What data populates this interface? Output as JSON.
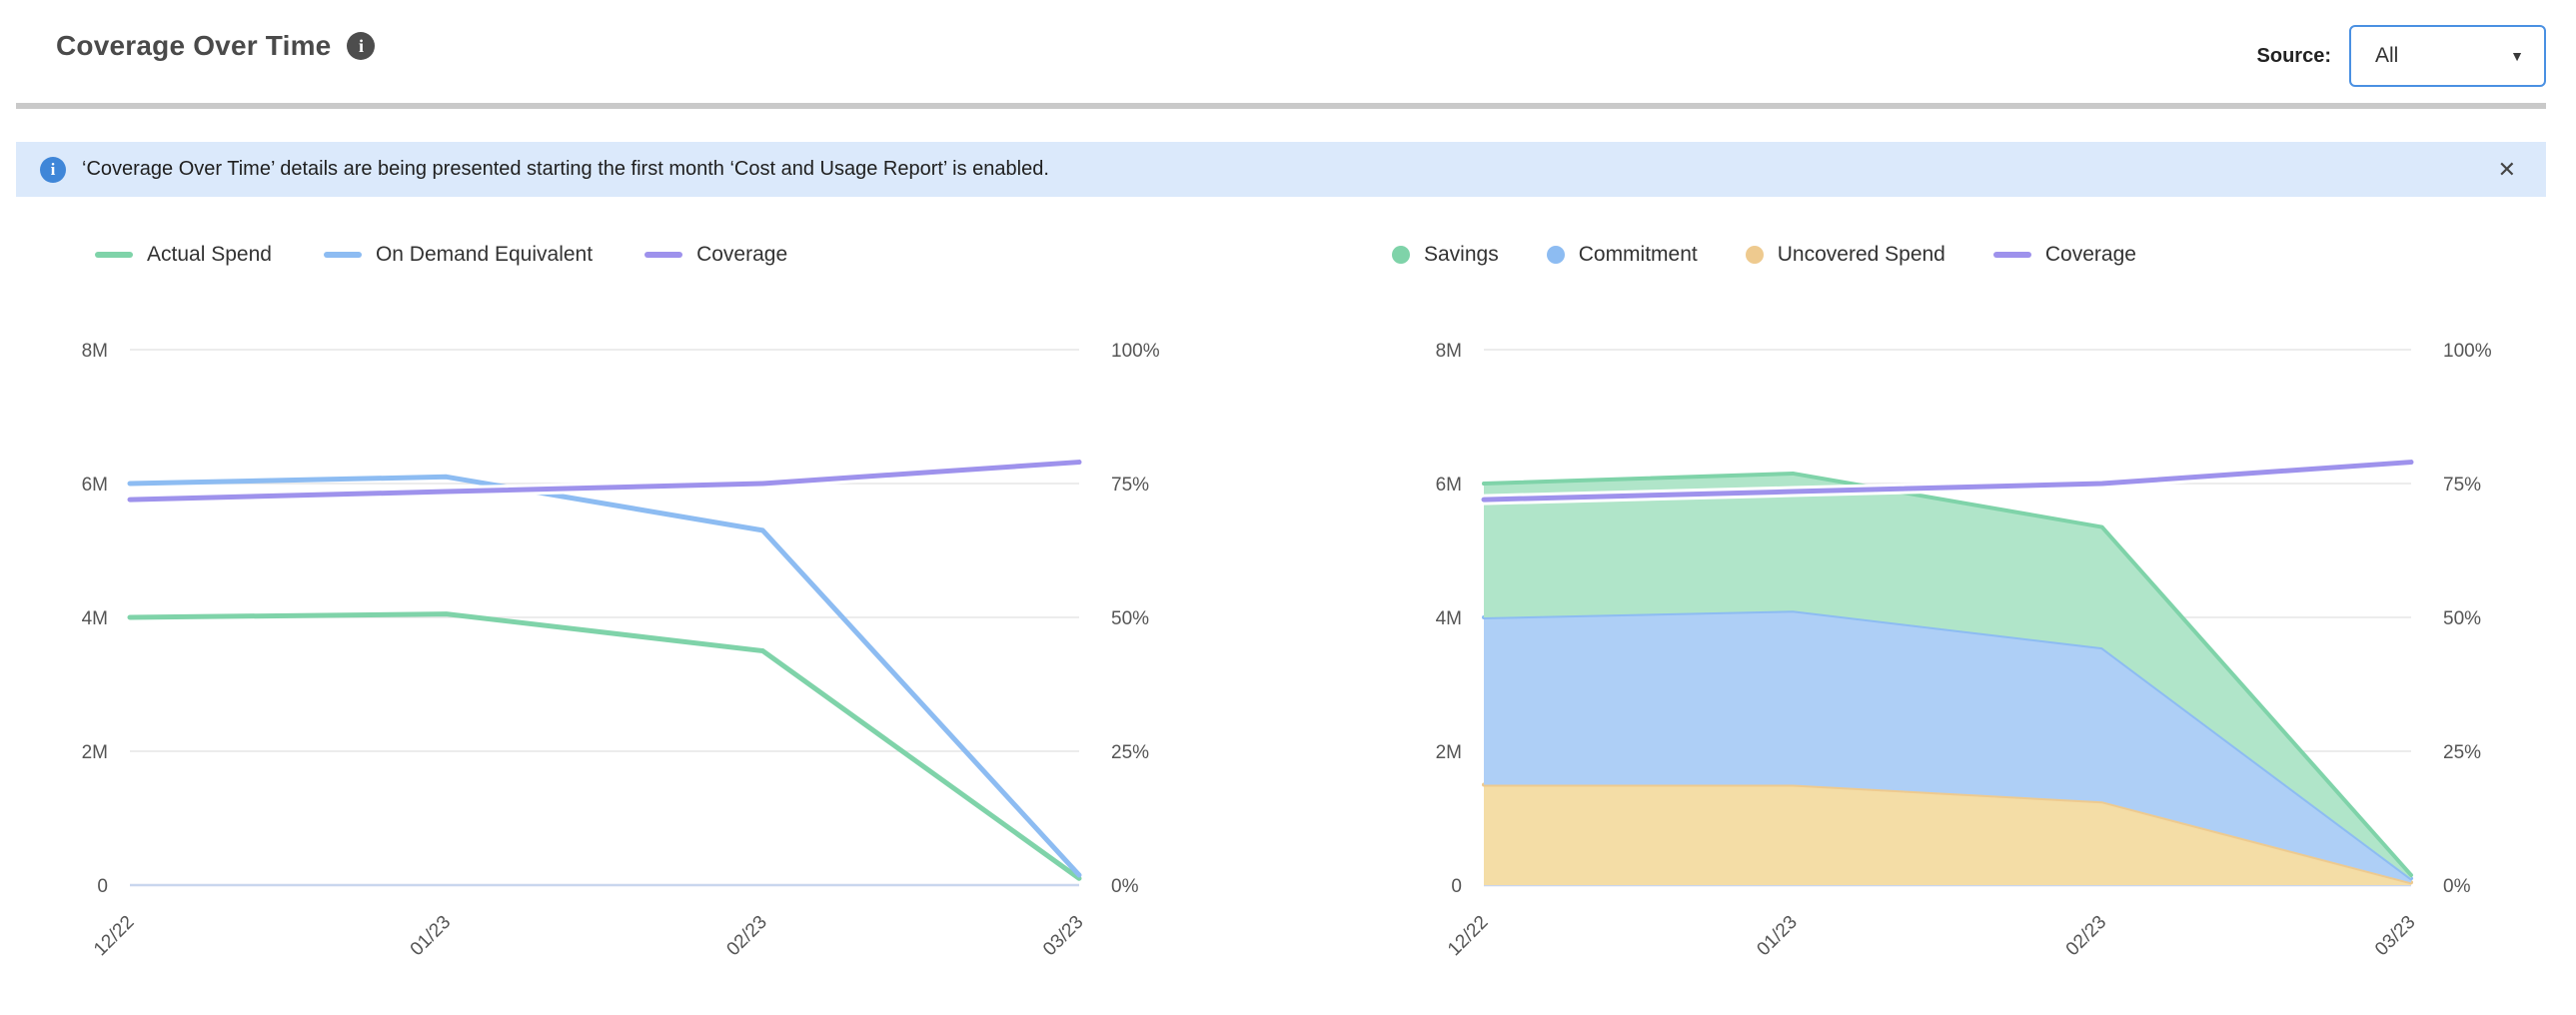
{
  "header": {
    "title": "Coverage Over Time",
    "source_label": "Source:",
    "source_value": "All"
  },
  "icons": {
    "info": "i",
    "close": "✕",
    "caret": "▼"
  },
  "banner": {
    "text": "‘Coverage Over Time’ details are being presented starting the first month ‘Cost and Usage Report’ is enabled.",
    "background": "#dbe9fb",
    "icon_color": "#3f86d8"
  },
  "colors": {
    "grid": "#e5e5e5",
    "baseline": "#c9d6ee",
    "axis_text": "#555555",
    "dropdown_border": "#4a90e2"
  },
  "chart_data": [
    {
      "type": "line",
      "categories": [
        "12/22",
        "01/23",
        "02/23",
        "03/23"
      ],
      "y_left": {
        "ticks": [
          "0",
          "2M",
          "4M",
          "6M",
          "8M"
        ],
        "range": [
          0,
          8
        ],
        "unit": "M"
      },
      "y_right": {
        "ticks": [
          "0%",
          "25%",
          "50%",
          "75%",
          "100%"
        ],
        "range": [
          0,
          100
        ],
        "unit": "%"
      },
      "grid": true,
      "legend_position": "top-left",
      "series": [
        {
          "name": "Actual Spend",
          "kind": "line",
          "axis": "left",
          "color": "#7fd3a9",
          "values": [
            4.0,
            4.05,
            3.5,
            0.1
          ]
        },
        {
          "name": "On Demand Equivalent",
          "kind": "line",
          "axis": "left",
          "color": "#8dbcf2",
          "values": [
            6.0,
            6.1,
            5.3,
            0.15
          ]
        },
        {
          "name": "Coverage",
          "kind": "line",
          "axis": "right",
          "color": "#9e92ec",
          "halo": "#ffffff",
          "values": [
            72,
            73.5,
            75,
            79
          ]
        }
      ]
    },
    {
      "type": "area",
      "categories": [
        "12/22",
        "01/23",
        "02/23",
        "03/23"
      ],
      "y_left": {
        "ticks": [
          "0",
          "2M",
          "4M",
          "6M",
          "8M"
        ],
        "range": [
          0,
          8
        ],
        "unit": "M"
      },
      "y_right": {
        "ticks": [
          "0%",
          "25%",
          "50%",
          "75%",
          "100%"
        ],
        "range": [
          0,
          100
        ],
        "unit": "%"
      },
      "grid": true,
      "legend_position": "top-left",
      "series": [
        {
          "name": "Savings",
          "kind": "area",
          "axis": "left",
          "stack_level": 2,
          "color": "#7fd3a9",
          "fill": "#b0e5c9",
          "values": [
            2.0,
            2.05,
            1.8,
            0.05
          ]
        },
        {
          "name": "Commitment",
          "kind": "area",
          "axis": "left",
          "stack_level": 1,
          "color": "#8dbcf2",
          "fill": "#aecff6",
          "values": [
            2.5,
            2.6,
            2.3,
            0.06
          ]
        },
        {
          "name": "Uncovered Spend",
          "kind": "area",
          "axis": "left",
          "stack_level": 0,
          "color": "#eeca8f",
          "fill": "#f4dda6",
          "values": [
            1.5,
            1.5,
            1.25,
            0.04
          ]
        },
        {
          "name": "Coverage",
          "kind": "line",
          "axis": "right",
          "color": "#9e92ec",
          "halo": "#ffffff",
          "values": [
            72,
            73.5,
            75,
            79
          ]
        }
      ]
    }
  ]
}
